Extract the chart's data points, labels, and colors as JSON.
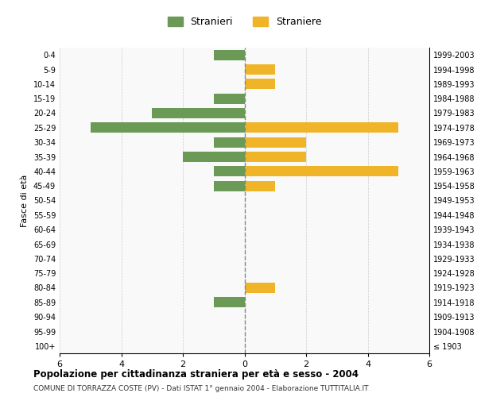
{
  "age_groups": [
    "100+",
    "95-99",
    "90-94",
    "85-89",
    "80-84",
    "75-79",
    "70-74",
    "65-69",
    "60-64",
    "55-59",
    "50-54",
    "45-49",
    "40-44",
    "35-39",
    "30-34",
    "25-29",
    "20-24",
    "15-19",
    "10-14",
    "5-9",
    "0-4"
  ],
  "birth_years": [
    "≤ 1903",
    "1904-1908",
    "1909-1913",
    "1914-1918",
    "1919-1923",
    "1924-1928",
    "1929-1933",
    "1934-1938",
    "1939-1943",
    "1944-1948",
    "1949-1953",
    "1954-1958",
    "1959-1963",
    "1964-1968",
    "1969-1973",
    "1974-1978",
    "1979-1983",
    "1984-1988",
    "1989-1993",
    "1994-1998",
    "1999-2003"
  ],
  "males": [
    0,
    0,
    0,
    1,
    0,
    0,
    0,
    0,
    0,
    0,
    0,
    1,
    1,
    2,
    1,
    5,
    3,
    1,
    0,
    0,
    1
  ],
  "females": [
    0,
    0,
    0,
    0,
    1,
    0,
    0,
    0,
    0,
    0,
    0,
    1,
    5,
    2,
    2,
    5,
    0,
    0,
    1,
    1,
    0
  ],
  "male_color": "#6a9a55",
  "female_color": "#f0b429",
  "xlim": 6,
  "title": "Popolazione per cittadinanza straniera per età e sesso - 2004",
  "subtitle": "COMUNE DI TORRAZZA COSTE (PV) - Dati ISTAT 1° gennaio 2004 - Elaborazione TUTTITALIA.IT",
  "ylabel_left": "Fasce di età",
  "legend_male": "Stranieri",
  "legend_female": "Straniere",
  "bg_color": "#f9f9f9",
  "grid_color": "#cccccc",
  "center_line_color": "#888888"
}
